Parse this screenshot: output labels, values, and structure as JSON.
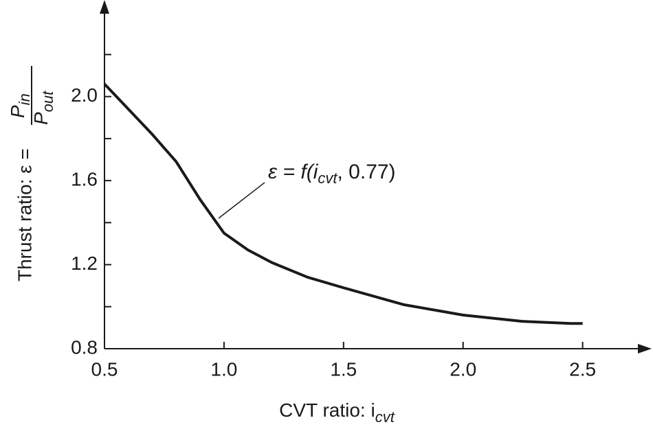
{
  "chart_data": {
    "type": "line",
    "x_label": [
      "CVT ratio: i",
      "cvt"
    ],
    "y_label": {
      "text": "Thrust ratio: ε =",
      "numerator": [
        "P",
        "in"
      ],
      "denominator": [
        "P",
        "out"
      ]
    },
    "annotation": [
      "ε = f(i",
      "cvt",
      ", 0.77)"
    ],
    "x": [
      0.5,
      0.6,
      0.7,
      0.8,
      0.9,
      1.0,
      1.1,
      1.2,
      1.35,
      1.5,
      1.75,
      2.0,
      2.25,
      2.45,
      2.5
    ],
    "series": [
      {
        "color": "#1a1a1a",
        "values": [
          2.06,
          1.94,
          1.82,
          1.69,
          1.51,
          1.35,
          1.27,
          1.21,
          1.14,
          1.09,
          1.01,
          0.96,
          0.93,
          0.92,
          0.92
        ]
      }
    ],
    "xlim": [
      0.5,
      2.78
    ],
    "ylim": [
      0.8,
      2.44
    ],
    "xticks": [
      0.5,
      {
        "value": 1,
        "label": "1.0"
      },
      1.5,
      {
        "value": 2,
        "label": "2.0"
      },
      2.5
    ],
    "yticks": [
      0.8,
      1.2,
      1.6,
      {
        "value": 2,
        "label": "2.0"
      }
    ],
    "y_minor_ticks": [
      1,
      1.4,
      1.8,
      2.2
    ]
  }
}
